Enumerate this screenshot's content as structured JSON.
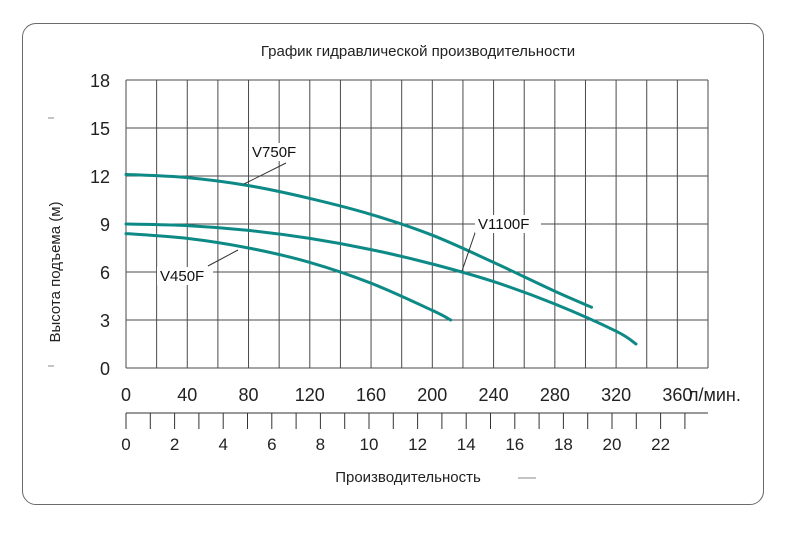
{
  "chart_data": {
    "type": "line",
    "title": "График гидравлической производительности",
    "ylabel": "Высота подъема (м)",
    "xlabel": "Производительность",
    "x_unit": "л/мин.",
    "xlim": [
      0,
      380
    ],
    "ylim": [
      0,
      18
    ],
    "x_ticks": [
      "0",
      "40",
      "80",
      "120",
      "160",
      "200",
      "240",
      "280",
      "320",
      "360"
    ],
    "y_ticks": [
      "0",
      "3",
      "6",
      "9",
      "12",
      "15",
      "18"
    ],
    "secondary_x_ticks": [
      "0",
      "2",
      "4",
      "6",
      "8",
      "10",
      "12",
      "14",
      "16",
      "18",
      "20",
      "22"
    ],
    "grid": true,
    "series": [
      {
        "name": "V750F",
        "x": [
          0,
          40,
          80,
          120,
          160,
          200,
          240,
          280,
          304
        ],
        "y": [
          12.1,
          11.9,
          11.4,
          10.6,
          9.6,
          8.3,
          6.6,
          4.8,
          3.8
        ]
      },
      {
        "name": "V1100F",
        "x": [
          0,
          40,
          80,
          120,
          160,
          200,
          240,
          280,
          320,
          333
        ],
        "y": [
          9.0,
          8.9,
          8.6,
          8.1,
          7.4,
          6.5,
          5.4,
          4.0,
          2.3,
          1.5
        ]
      },
      {
        "name": "V450F",
        "x": [
          0,
          40,
          80,
          120,
          160,
          200,
          212
        ],
        "y": [
          8.4,
          8.1,
          7.5,
          6.6,
          5.3,
          3.6,
          3.0
        ]
      }
    ],
    "colors": {
      "curve": "#0e8a86",
      "grid": "#4a4a4a",
      "text": "#222222"
    }
  }
}
